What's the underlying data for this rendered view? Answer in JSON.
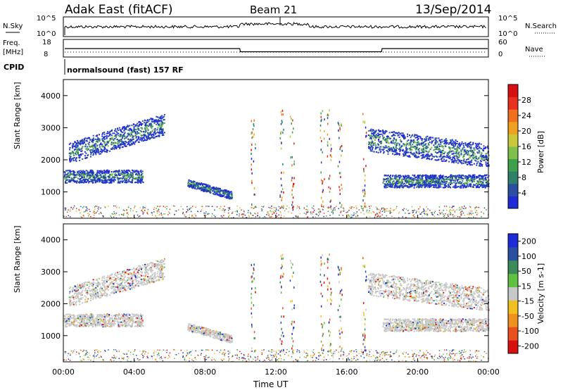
{
  "header": {
    "station": "Adak East (fitACF)",
    "beam": "Beam 21",
    "date": "13/Sep/2014"
  },
  "noise_panel": {
    "left_label": "N.Sky",
    "left_ticks": [
      "10^5",
      "10^0"
    ],
    "right_label": "N.Search",
    "right_ticks": [
      "10^5",
      "10^0"
    ]
  },
  "freq_panel": {
    "left_label_line1": "Freq.",
    "left_label_line2": "[MHz]",
    "left_ticks": [
      "18",
      "8"
    ],
    "right_label": "Nave",
    "right_ticks": [
      "60",
      "0"
    ]
  },
  "cpid": {
    "label": "CPID",
    "text": "normalsound (fast) 157 RF"
  },
  "x_axis": {
    "title": "Time UT",
    "ticks": [
      "00:00",
      "04:00",
      "08:00",
      "12:00",
      "16:00",
      "20:00",
      "00:00"
    ]
  },
  "power_panel": {
    "ylabel": "Slant Range [km]",
    "yticks": [
      "1000",
      "2000",
      "3000",
      "4000"
    ],
    "colorbar_label": "Power [dB]",
    "colorbar_ticks": [
      "4",
      "8",
      "12",
      "16",
      "20",
      "24",
      "28"
    ],
    "colorbar_colors": [
      "#1f2bd8",
      "#2a4fa0",
      "#2f7f6a",
      "#3f9f4a",
      "#7fc04a",
      "#c8c83a",
      "#f0a020",
      "#f07020",
      "#e83020",
      "#d81010"
    ]
  },
  "velocity_panel": {
    "ylabel": "Slant Range [km]",
    "yticks": [
      "1000",
      "2000",
      "3000",
      "4000"
    ],
    "colorbar_label": "Velocity [m s-1]",
    "colorbar_ticks": [
      "200",
      "100",
      "50",
      "15",
      "-15",
      "-50",
      "-100",
      "-200"
    ],
    "colorbar_colors": [
      "#1f2bd8",
      "#2a4fa0",
      "#3a8a5a",
      "#60c040",
      "#c8c8c8",
      "#f0c020",
      "#f09020",
      "#e85020",
      "#d81010"
    ]
  },
  "chart_data": {
    "type": "heatmap",
    "panels": [
      "Power",
      "Velocity"
    ],
    "x_range_hours": [
      0,
      24
    ],
    "y_range_km": [
      180,
      4500
    ],
    "frequency_steps": [
      {
        "start_hour": 0.0,
        "end_hour": 10.0,
        "freq_mhz": 13
      },
      {
        "start_hour": 10.0,
        "end_hour": 18.0,
        "freq_mhz": 10.5
      },
      {
        "start_hour": 18.0,
        "end_hour": 24.0,
        "freq_mhz": 13
      }
    ],
    "echo_regions": [
      {
        "t_start": 0.3,
        "t_end": 5.7,
        "r_start": 2100,
        "r_end": 3500,
        "shape": "rising-band"
      },
      {
        "t_start": 0.0,
        "t_end": 4.5,
        "r_start": 1300,
        "r_end": 1700,
        "shape": "band"
      },
      {
        "t_start": 7.0,
        "t_end": 9.5,
        "r_start": 850,
        "r_end": 1400,
        "shape": "descending-patch"
      },
      {
        "t_start": 17.2,
        "t_end": 24.0,
        "r_start": 1800,
        "r_end": 3000,
        "shape": "descending-band"
      },
      {
        "t_start": 18.0,
        "t_end": 24.0,
        "r_start": 1150,
        "r_end": 1550,
        "shape": "band"
      }
    ]
  }
}
